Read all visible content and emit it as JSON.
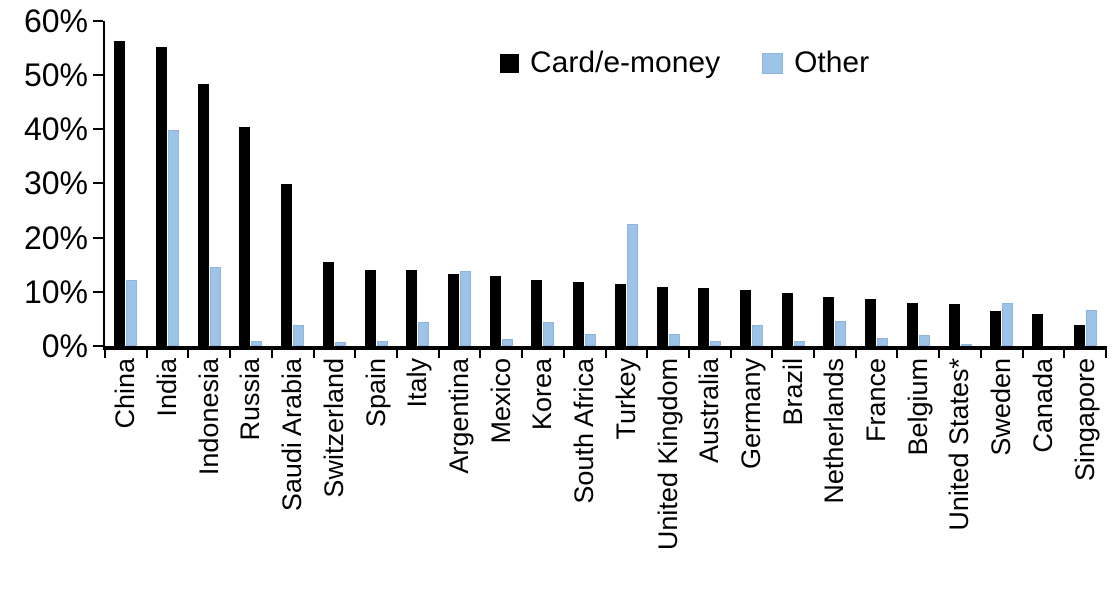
{
  "chart_data": {
    "type": "bar",
    "title": "",
    "xlabel": "",
    "ylabel": "",
    "ylim": [
      0,
      60
    ],
    "ytick_step": 10,
    "ytick_labels": [
      "0%",
      "10%",
      "20%",
      "30%",
      "40%",
      "50%",
      "60%"
    ],
    "grid": false,
    "legend_position": "top-center",
    "categories": [
      "China",
      "India",
      "Indonesia",
      "Russia",
      "Saudi Arabia",
      "Switzerland",
      "Spain",
      "Italy",
      "Argentina",
      "Mexico",
      "Korea",
      "South Africa",
      "Turkey",
      "United Kingdom",
      "Australia",
      "Germany",
      "Brazil",
      "Netherlands",
      "France",
      "Belgium",
      "United States*",
      "Sweden",
      "Canada",
      "Singapore"
    ],
    "series": [
      {
        "name": "Card/e-money",
        "color": "#000000",
        "border_color": "#000000",
        "values": [
          56.2,
          55.1,
          48.4,
          40.4,
          29.8,
          15.5,
          14.1,
          14.0,
          13.3,
          12.9,
          12.2,
          11.8,
          11.5,
          10.9,
          10.7,
          10.4,
          9.8,
          9.1,
          8.6,
          8.0,
          7.7,
          6.4,
          5.9,
          3.8
        ]
      },
      {
        "name": "Other",
        "color": "#9DC3E6",
        "border_color": "#8CB4DC",
        "values": [
          12.2,
          39.8,
          14.5,
          1.0,
          3.8,
          0.7,
          0.9,
          4.5,
          13.8,
          1.3,
          4.5,
          2.3,
          22.5,
          2.3,
          0.9,
          3.8,
          1.0,
          4.7,
          1.4,
          2.0,
          0.3,
          8.0,
          0.0,
          6.6
        ]
      }
    ]
  }
}
